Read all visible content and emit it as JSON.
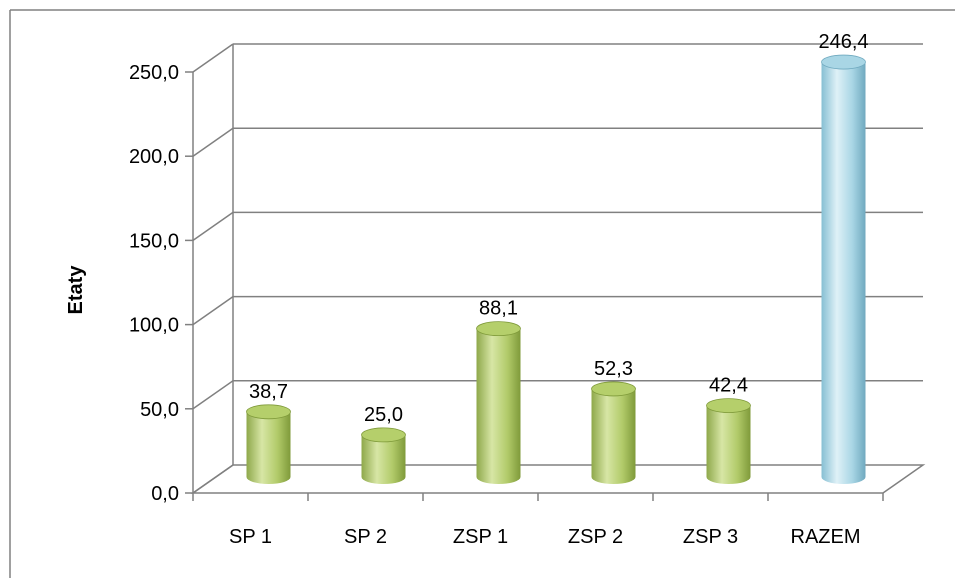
{
  "chart_data": {
    "type": "bar",
    "style": "3d-cylinder",
    "categories": [
      "SP 1",
      "SP 2",
      "ZSP 1",
      "ZSP 2",
      "ZSP 3",
      "RAZEM"
    ],
    "values": [
      38.7,
      25.0,
      88.1,
      52.3,
      42.4,
      246.4
    ],
    "value_labels": [
      "38,7",
      "25,0",
      "88,1",
      "52,3",
      "42,4",
      "246,4"
    ],
    "ylabel": "Etaty",
    "xlabel": "",
    "title": "",
    "ylim": [
      0,
      250
    ],
    "yticks": [
      0,
      50,
      100,
      150,
      200,
      250
    ],
    "ytick_labels": [
      "0,0",
      "50,0",
      "100,0",
      "150,0",
      "200,0",
      "250,0"
    ],
    "grid": true,
    "legend": "none",
    "colors": {
      "bar": "#b5cf6b",
      "bar_dark": "#7f9a3a",
      "bar_light": "#e4efc4",
      "total_bar": "#a9d6e5",
      "total_bar_dark": "#6fa9bf",
      "total_bar_light": "#e3f3f8",
      "grid": "#808080",
      "frame": "#808080"
    }
  }
}
